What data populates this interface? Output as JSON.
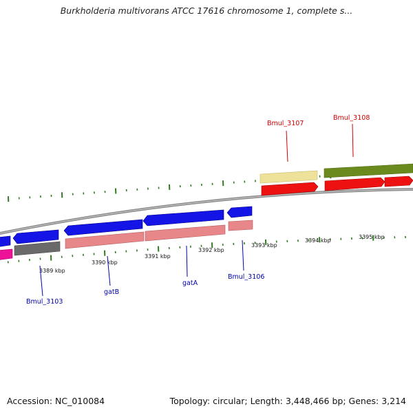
{
  "title": "Burkholderia multivorans ATCC 17616 chromosome 1, complete s...",
  "footer": {
    "accession": "Accession: NC_010084",
    "topology": "Topology: circular; Length: 3,448,466 bp; Genes: 3,214"
  },
  "scale_labels": [
    "3389 kbp",
    "3390 kbp",
    "3391 kbp",
    "3392 kbp",
    "3393 kbp",
    "3394 kbp",
    "3395 kbp"
  ],
  "genes_top": [
    {
      "name": "Bmul_3107",
      "color": "#cc0000"
    },
    {
      "name": "Bmul_3108",
      "color": "#cc0000"
    }
  ],
  "genes_bottom": [
    {
      "name": "Bmul_3103",
      "color": "#0000aa"
    },
    {
      "name": "gatB",
      "color": "#0000aa"
    },
    {
      "name": "gatA",
      "color": "#0000aa"
    },
    {
      "name": "Bmul_3106",
      "color": "#0000aa"
    }
  ],
  "colors": {
    "backbone": "#8a8a8a",
    "tick": "#2e7d1e",
    "cds_blue": "#1414e6",
    "cds_pink": "#e8878a",
    "cds_red": "#ee1111",
    "cds_yellow": "#eee29a",
    "cds_olive": "#6b8a1e",
    "cds_gray": "#6a6a6a",
    "cds_magenta": "#ee1199"
  }
}
